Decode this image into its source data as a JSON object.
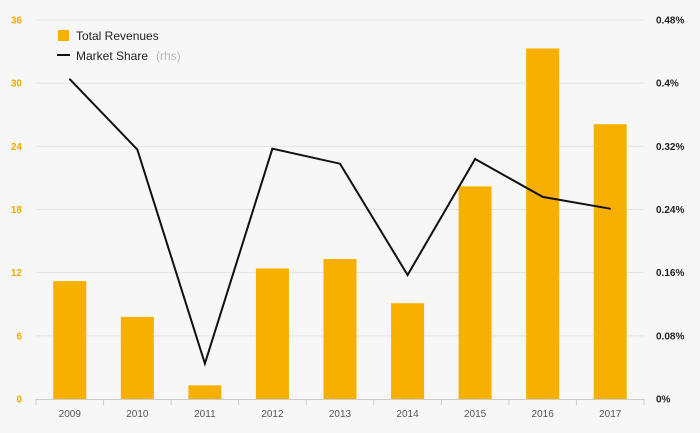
{
  "chart_data": {
    "type": "bar",
    "categories": [
      "2009",
      "2010",
      "2011",
      "2012",
      "2013",
      "2014",
      "2015",
      "2016",
      "2017"
    ],
    "series": [
      {
        "name": "Total Revenues",
        "type": "bar",
        "axis": "left",
        "values": [
          11.2,
          7.8,
          1.3,
          12.4,
          13.3,
          9.1,
          20.2,
          33.3,
          26.1
        ]
      },
      {
        "name": "Market Share",
        "name_suffix": "(rhs)",
        "type": "line",
        "axis": "right",
        "values": [
          0.405,
          0.316,
          0.045,
          0.317,
          0.298,
          0.157,
          0.304,
          0.256,
          0.241
        ]
      }
    ],
    "y_left": {
      "ylim": [
        0,
        36
      ],
      "ticks": [
        0,
        6,
        12,
        18,
        24,
        30,
        36
      ],
      "tick_labels": [
        "0",
        "6",
        "12",
        "18",
        "24",
        "30",
        "36"
      ]
    },
    "y_right": {
      "ylim": [
        0,
        0.48
      ],
      "ticks": [
        0,
        0.08,
        0.16,
        0.24,
        0.32,
        0.4,
        0.48
      ],
      "tick_labels": [
        "0%",
        "0.08%",
        "0.16%",
        "0.24%",
        "0.32%",
        "0.4%",
        "0.48%"
      ]
    },
    "title": "",
    "xlabel": "",
    "ylabel": "",
    "grid": true,
    "legend_position": "top-left",
    "colors": {
      "bar": "#f8b000",
      "line": "#111111",
      "left_tick": "#f0a800",
      "grid": "#e4e4e4",
      "background": "#f7f7f7"
    }
  }
}
